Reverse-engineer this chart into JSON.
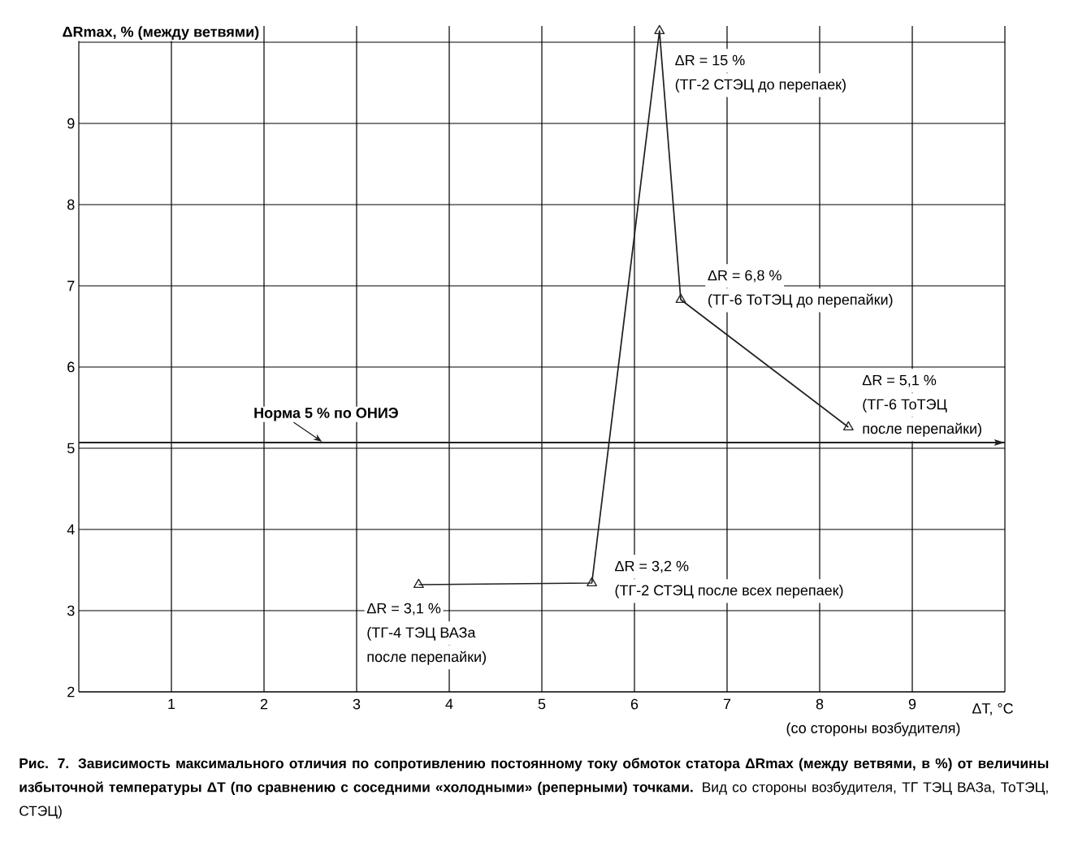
{
  "chart_data": {
    "type": "line",
    "title": "**Рис. 7. Зависимость максимального отличия по сопротивлению постоянному току обмоток статора ΔRmax (между ветвями, в %) от величины избыточной температуры ΔT (по сравнению с соседними «холодными» (реперными) точками.** Вид со стороны возбудителя, ТГ ТЭЦ ВАЗа, ТоТЭЦ, СТЭЦ)",
    "xlabel": "ΔT, °C",
    "ylabel": "ΔRmax, % (между ветвями)",
    "x": [
      3.67,
      5.54,
      6.27,
      6.5,
      8.31
    ],
    "series": [
      {
        "color": "#231f20",
        "values": [
          3.32,
          3.34,
          10.14,
          6.83,
          5.26
        ]
      }
    ],
    "marker": "triangle",
    "line_style": "solid",
    "grid": true,
    "xlim": [
      0,
      10
    ],
    "ylim": [
      2,
      10.2
    ],
    "xticks": [
      1,
      2,
      3,
      4,
      5,
      6,
      7,
      8,
      9,
      {
        "value": 10,
        "label": null
      }
    ],
    "yticks": [
      2,
      3,
      4,
      5,
      6,
      7,
      8,
      9,
      {
        "value": 10,
        "label": null
      }
    ],
    "ref_lines": [
      {
        "axis": "y",
        "value": 5.07,
        "label": "Норма 5 % по ОНИЭ"
      }
    ],
    "annotations": [
      {
        "text": "ΔR = 15 %",
        "x": 6.27,
        "y": 10.14
      },
      "(ТГ-2 СТЭЦ до перепаек)",
      {
        "text": "ΔR = 6,8 %",
        "x": 6.5,
        "y": 6.83
      },
      "(ТГ-6 ТоТЭЦ до перепайки)",
      {
        "text": "ΔR = 5,1 %",
        "x": 8.31,
        "y": 5.26
      },
      "(ТГ-6 ТоТЭЦ",
      "после перепайки)",
      {
        "text": "ΔR = 3,2 %",
        "x": 5.54,
        "y": 3.34
      },
      "(ТГ-2 СТЭЦ после всех перепаек)",
      {
        "text": "ΔR = 3,1 %",
        "x": 3.67,
        "y": 3.32
      },
      "(ТГ-4 ТЭЦ ВАЗа",
      "после перепайки)",
      "(со стороны возбудителя)"
    ]
  }
}
